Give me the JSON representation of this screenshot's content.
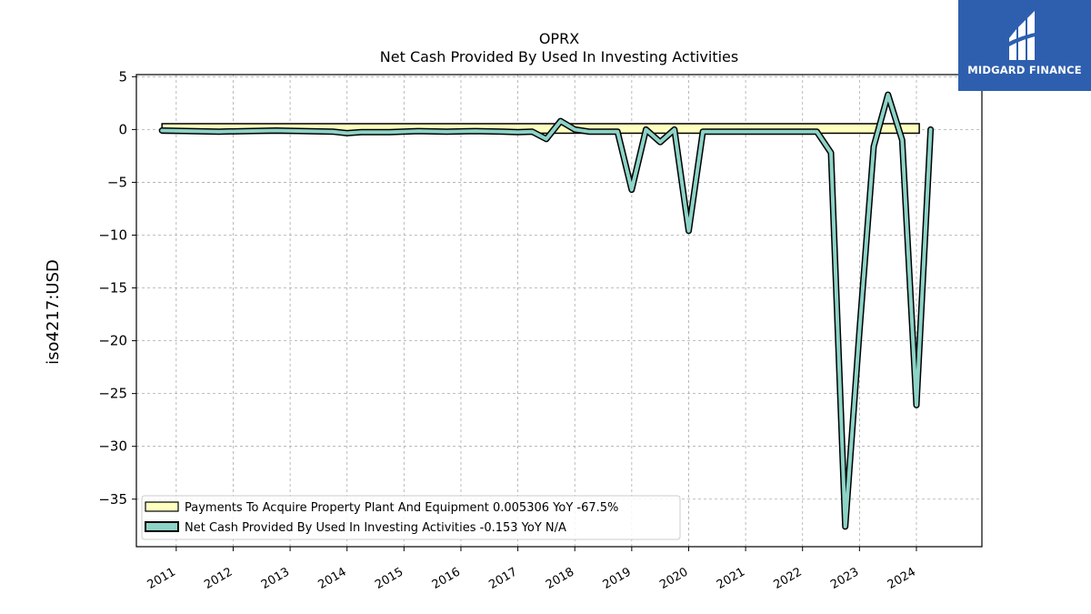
{
  "chart_data": {
    "type": "line",
    "title": "OPRX",
    "subtitle": "Net Cash Provided By Used In Investing Activities",
    "ylabel": "iso4217:USD",
    "xlabel": "",
    "ylim": [
      -39.5,
      5.2
    ],
    "xlim": [
      2010.3,
      2025.15
    ],
    "yticks": [
      5,
      0,
      -5,
      -10,
      -15,
      -20,
      -25,
      -30,
      -35
    ],
    "ytick_labels": [
      "5",
      "0",
      "−5",
      "−10",
      "−15",
      "−20",
      "−25",
      "−30",
      "−35"
    ],
    "xticks": [
      2011,
      2012,
      2013,
      2014,
      2015,
      2016,
      2017,
      2018,
      2019,
      2020,
      2021,
      2022,
      2023,
      2024
    ],
    "xtick_labels": [
      "2011",
      "2012",
      "2013",
      "2014",
      "2015",
      "2016",
      "2017",
      "2018",
      "2019",
      "2020",
      "2021",
      "2022",
      "2023",
      "2024"
    ],
    "grid": true,
    "legend_position": "lower-left",
    "series": [
      {
        "name": "Payments To Acquire Property Plant And Equipment",
        "legend_label": "Payments To Acquire Property Plant And Equipment  0.005306 YoY -67.5%",
        "color": "#ffffbf",
        "style": "bar-band",
        "x": [
          2010.75,
          2011.5,
          2012.5,
          2013.5,
          2014.5,
          2015.5,
          2016.5,
          2017.5,
          2018.5,
          2019.5,
          2020.5,
          2021.5,
          2022.5,
          2023.5,
          2024.05
        ],
        "values": [
          0.1,
          0.1,
          0.1,
          0.1,
          0.1,
          0.1,
          0.1,
          0.1,
          0.1,
          0.1,
          0.1,
          0.1,
          0.1,
          0.1,
          0.1
        ]
      },
      {
        "name": "Net Cash Provided By Used In Investing Activities",
        "legend_label": "Net Cash Provided By Used In Investing Activities  -0.153 YoY N/A",
        "color": "#8dd3c7",
        "style": "line",
        "x": [
          2010.75,
          2011.25,
          2011.75,
          2012.25,
          2012.75,
          2013.25,
          2013.75,
          2014.0,
          2014.25,
          2014.75,
          2015.25,
          2015.75,
          2016.25,
          2016.75,
          2017.0,
          2017.25,
          2017.5,
          2017.75,
          2018.0,
          2018.25,
          2018.5,
          2018.75,
          2019.0,
          2019.25,
          2019.5,
          2019.75,
          2020.0,
          2020.25,
          2020.5,
          2020.75,
          2021.0,
          2021.25,
          2021.5,
          2021.75,
          2022.0,
          2022.25,
          2022.5,
          2022.75,
          2023.0,
          2023.25,
          2023.5,
          2023.75,
          2024.0,
          2024.25
        ],
        "values": [
          -0.1,
          -0.15,
          -0.2,
          -0.15,
          -0.1,
          -0.15,
          -0.2,
          -0.35,
          -0.25,
          -0.25,
          -0.15,
          -0.2,
          -0.15,
          -0.2,
          -0.25,
          -0.2,
          -0.9,
          0.8,
          0.0,
          -0.2,
          -0.2,
          -0.2,
          -5.7,
          0.0,
          -1.2,
          0.0,
          -9.6,
          -0.2,
          -0.2,
          -0.2,
          -0.2,
          -0.2,
          -0.2,
          -0.2,
          -0.2,
          -0.2,
          -2.2,
          -37.6,
          -19.0,
          -1.6,
          3.3,
          -1.0,
          -26.1,
          0.0
        ]
      }
    ]
  },
  "logo": {
    "text": "MIDGARD FINANCE",
    "background": "#2e5fae"
  }
}
